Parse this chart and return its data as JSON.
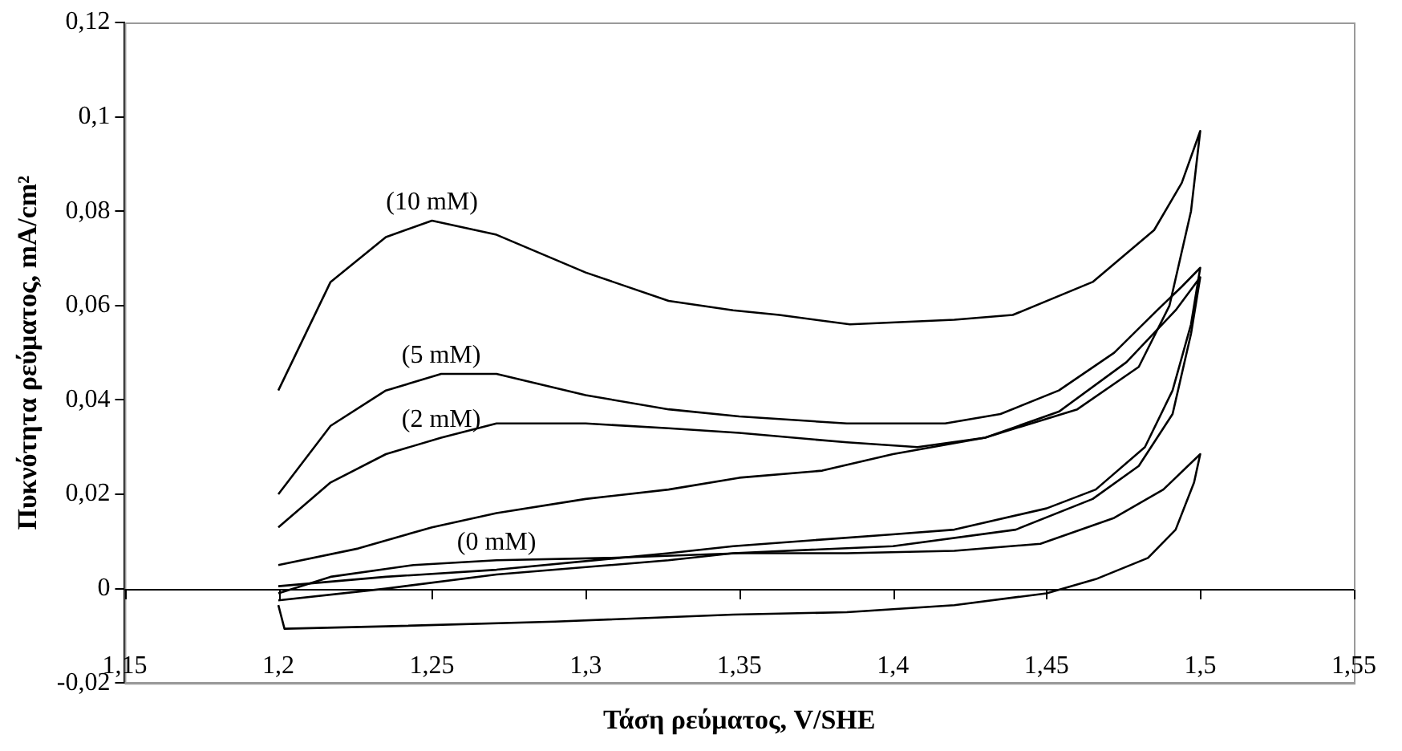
{
  "chart_data": {
    "type": "line",
    "xlabel": "Τάση ρεύματος, V/SHE",
    "ylabel": "Πυκνότητα ρεύματος, mA/cm²",
    "xlim": [
      1.15,
      1.55
    ],
    "ylim": [
      -0.02,
      0.12
    ],
    "xticks": [
      {
        "value": 1.15,
        "label": "1,15"
      },
      {
        "value": 1.2,
        "label": "1,2"
      },
      {
        "value": 1.25,
        "label": "1,25"
      },
      {
        "value": 1.3,
        "label": "1,3"
      },
      {
        "value": 1.35,
        "label": "1,35"
      },
      {
        "value": 1.4,
        "label": "1,4"
      },
      {
        "value": 1.45,
        "label": "1,45"
      },
      {
        "value": 1.5,
        "label": "1,5"
      },
      {
        "value": 1.55,
        "label": "1,55"
      }
    ],
    "yticks": [
      {
        "value": -0.02,
        "label": "-0,02"
      },
      0,
      {
        "value": 0.02,
        "label": "0,02"
      },
      {
        "value": 0.04,
        "label": "0,04"
      },
      {
        "value": 0.06,
        "label": "0,06"
      },
      {
        "value": 0.08,
        "label": "0,08"
      },
      {
        "value": 0.1,
        "label": "0,1"
      },
      {
        "value": 0.12,
        "label": "0,12"
      }
    ],
    "grid": false,
    "legend": false,
    "marker": "none",
    "line_style": "solid",
    "ref_lines": [
      {
        "axis": "y",
        "value": 0,
        "color": "#000000"
      }
    ],
    "series": [
      {
        "name": "(10 mM)",
        "color": "#000000",
        "x": [
          1.2,
          1.217,
          1.235,
          1.25,
          1.271,
          1.3,
          1.327,
          1.348,
          1.363,
          1.386,
          1.42,
          1.439,
          1.465,
          1.485,
          1.494,
          1.5,
          1.497,
          1.49,
          1.48,
          1.46,
          1.43,
          1.4,
          1.377,
          1.35,
          1.327,
          1.3,
          1.271,
          1.25,
          1.226,
          1.2
        ],
        "values": [
          0.042,
          0.065,
          0.0745,
          0.078,
          0.075,
          0.067,
          0.061,
          0.059,
          0.058,
          0.056,
          0.057,
          0.058,
          0.065,
          0.076,
          0.086,
          0.097,
          0.08,
          0.06,
          0.047,
          0.038,
          0.032,
          0.0285,
          0.025,
          0.0235,
          0.021,
          0.019,
          0.016,
          0.013,
          0.0085,
          0.005
        ]
      },
      {
        "name": "(5 mM)",
        "color": "#000000",
        "x": [
          1.2,
          1.217,
          1.235,
          1.253,
          1.271,
          1.3,
          1.327,
          1.35,
          1.385,
          1.417,
          1.435,
          1.454,
          1.472,
          1.486,
          1.494,
          1.5,
          1.497,
          1.491,
          1.482,
          1.466,
          1.45,
          1.42,
          1.4,
          1.348,
          1.327,
          1.271,
          1.235,
          1.2
        ],
        "values": [
          0.02,
          0.0345,
          0.042,
          0.0455,
          0.0455,
          0.041,
          0.038,
          0.0365,
          0.035,
          0.035,
          0.037,
          0.042,
          0.05,
          0.059,
          0.064,
          0.068,
          0.056,
          0.042,
          0.03,
          0.021,
          0.017,
          0.0125,
          0.0115,
          0.009,
          0.0075,
          0.004,
          0.0025,
          0.0005
        ]
      },
      {
        "name": "(2 mM)",
        "color": "#000000",
        "x": [
          1.2,
          1.217,
          1.235,
          1.253,
          1.271,
          1.3,
          1.327,
          1.35,
          1.385,
          1.408,
          1.43,
          1.454,
          1.476,
          1.492,
          1.5,
          1.497,
          1.491,
          1.48,
          1.465,
          1.44,
          1.4,
          1.348,
          1.327,
          1.271,
          1.235,
          1.2
        ],
        "values": [
          0.013,
          0.0225,
          0.0285,
          0.032,
          0.035,
          0.035,
          0.034,
          0.033,
          0.031,
          0.03,
          0.032,
          0.0375,
          0.048,
          0.059,
          0.066,
          0.054,
          0.037,
          0.026,
          0.019,
          0.0125,
          0.009,
          0.0075,
          0.006,
          0.003,
          0,
          -0.0025
        ]
      },
      {
        "name": "(0 mM)",
        "color": "#000000",
        "x": [
          1.2,
          1.217,
          1.244,
          1.271,
          1.307,
          1.35,
          1.385,
          1.42,
          1.448,
          1.472,
          1.488,
          1.5,
          1.498,
          1.492,
          1.483,
          1.466,
          1.45,
          1.42,
          1.385,
          1.348,
          1.29,
          1.235,
          1.202,
          1.2
        ],
        "values": [
          -0.001,
          0.0025,
          0.005,
          0.006,
          0.0065,
          0.0075,
          0.0075,
          0.008,
          0.0095,
          0.015,
          0.021,
          0.0285,
          0.0225,
          0.0125,
          0.0065,
          0.002,
          -0.001,
          -0.0035,
          -0.005,
          -0.0055,
          -0.007,
          -0.008,
          -0.0085,
          -0.0035
        ]
      }
    ]
  }
}
